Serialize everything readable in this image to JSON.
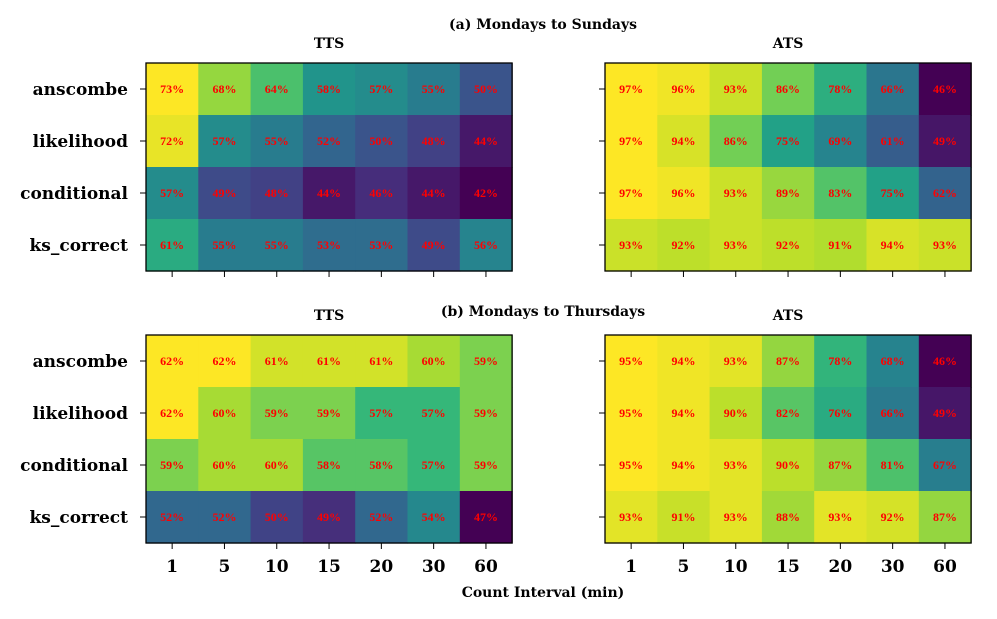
{
  "chart_data": {
    "type": "heatmap",
    "xlabel": "Count Interval (min)",
    "x_ticks": [
      "1",
      "5",
      "10",
      "15",
      "20",
      "30",
      "60"
    ],
    "y_ticks": [
      "anscombe",
      "likelihood",
      "conditional",
      "ks_correct"
    ],
    "value_label_color": "#ff0000",
    "colormap": "viridis",
    "rows": [
      {
        "title": "(a) Mondays to Sundays",
        "panels": [
          {
            "title": "TTS",
            "values": [
              [
                73,
                68,
                64,
                58,
                57,
                55,
                50
              ],
              [
                72,
                57,
                55,
                52,
                50,
                48,
                44
              ],
              [
                57,
                49,
                48,
                44,
                46,
                44,
                42
              ],
              [
                61,
                55,
                55,
                53,
                53,
                49,
                56
              ]
            ]
          },
          {
            "title": "ATS",
            "values": [
              [
                97,
                96,
                93,
                86,
                78,
                66,
                46
              ],
              [
                97,
                94,
                86,
                75,
                69,
                61,
                49
              ],
              [
                97,
                96,
                93,
                89,
                83,
                75,
                62
              ],
              [
                93,
                92,
                93,
                92,
                91,
                94,
                93
              ]
            ]
          }
        ]
      },
      {
        "title": "(b) Mondays to Thursdays",
        "panels": [
          {
            "title": "TTS",
            "values": [
              [
                62,
                62,
                61,
                61,
                61,
                60,
                59
              ],
              [
                62,
                60,
                59,
                59,
                57,
                57,
                59
              ],
              [
                59,
                60,
                60,
                58,
                58,
                57,
                59
              ],
              [
                52,
                52,
                50,
                49,
                52,
                54,
                47
              ]
            ]
          },
          {
            "title": "ATS",
            "values": [
              [
                95,
                94,
                93,
                87,
                78,
                68,
                46
              ],
              [
                95,
                94,
                90,
                82,
                76,
                66,
                49
              ],
              [
                95,
                94,
                93,
                90,
                87,
                81,
                67
              ],
              [
                93,
                91,
                93,
                88,
                93,
                92,
                87
              ]
            ]
          }
        ]
      }
    ]
  }
}
